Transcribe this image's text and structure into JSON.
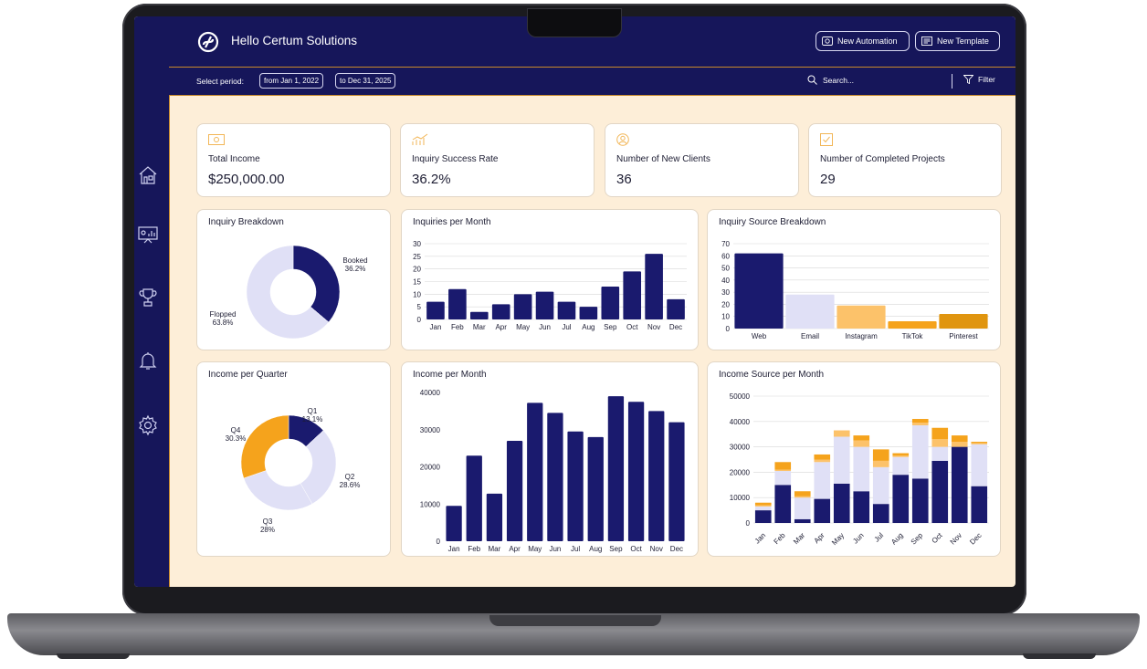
{
  "header": {
    "brand": "Hello Certum Solutions",
    "new_automation": "New Automation",
    "new_template": "New Template",
    "select_period": "Select period:",
    "from_date": "from Jan 1, 2022",
    "to_date": "to Dec 31, 2025",
    "search_placeholder": "Search...",
    "filter": "Filter"
  },
  "sidebar": {
    "items": [
      "home-icon",
      "presentation-icon",
      "trophy-icon",
      "bell-icon",
      "gear-icon"
    ]
  },
  "kpis": [
    {
      "icon": "cash-icon",
      "label": "Total Income",
      "value": "$250,000.00"
    },
    {
      "icon": "growth-icon",
      "label": "Inquiry Success Rate",
      "value": "36.2%"
    },
    {
      "icon": "user-icon",
      "label": "Number of New Clients",
      "value": "36"
    },
    {
      "icon": "check-icon",
      "label": "Number of Completed Projects",
      "value": "29"
    }
  ],
  "colors": {
    "navy": "#1a1a6e",
    "lavender": "#e0e0f6",
    "light_orange": "#fcc26a",
    "orange": "#f5a31c",
    "dark_orange": "#e0950f",
    "accent_border": "#c8892a"
  },
  "chart_data": [
    {
      "type": "pie",
      "title": "Inquiry Breakdown",
      "labels": [
        "Booked",
        "Flopped"
      ],
      "values": [
        36.2,
        63.8
      ],
      "value_labels": [
        "36.2%",
        "63.8%"
      ],
      "colors": [
        "#1a1a6e",
        "#e0e0f6"
      ]
    },
    {
      "type": "bar",
      "title": "Inquiries per Month",
      "categories": [
        "Jan",
        "Feb",
        "Mar",
        "Apr",
        "May",
        "Jun",
        "Jul",
        "Aug",
        "Sep",
        "Oct",
        "Nov",
        "Dec"
      ],
      "values": [
        7,
        12,
        3,
        6,
        10,
        11,
        7,
        5,
        13,
        19,
        26,
        8
      ],
      "ylim": [
        0,
        30
      ],
      "yticks": [
        0,
        5,
        10,
        15,
        20,
        25,
        30
      ],
      "grid": true
    },
    {
      "type": "bar",
      "title": "Inquiry Source Breakdown",
      "categories": [
        "Web",
        "Email",
        "Instagram",
        "TikTok",
        "Pinterest"
      ],
      "values": [
        62,
        28,
        19,
        6,
        12
      ],
      "colors": [
        "#1a1a6e",
        "#e0e0f6",
        "#fcc26a",
        "#f5a31c",
        "#e0950f"
      ],
      "ylim": [
        0,
        70
      ],
      "yticks": [
        0,
        10,
        20,
        30,
        40,
        50,
        60,
        70
      ],
      "grid": true
    },
    {
      "type": "pie",
      "title": "Income per Quarter",
      "labels": [
        "Q1",
        "Q2",
        "Q3",
        "Q4"
      ],
      "values": [
        13.1,
        28.6,
        28,
        30.3
      ],
      "value_labels": [
        "13.1%",
        "28.6%",
        "28%",
        "30.3%"
      ],
      "colors": [
        "#1a1a6e",
        "#e0e0f6",
        "#e0e0f6",
        "#f5a31c"
      ]
    },
    {
      "type": "bar",
      "title": "Income per Month",
      "categories": [
        "Jan",
        "Feb",
        "Mar",
        "Apr",
        "May",
        "Jun",
        "Jul",
        "Aug",
        "Sep",
        "Oct",
        "Nov",
        "Dec"
      ],
      "values": [
        9500,
        23000,
        12800,
        27000,
        37200,
        34500,
        29500,
        28000,
        39000,
        37500,
        35000,
        32000
      ],
      "ylim": [
        0,
        40000
      ],
      "yticks": [
        0,
        10000,
        20000,
        30000,
        40000
      ],
      "grid": false
    },
    {
      "type": "bar",
      "stacked": true,
      "title": "Income Source per Month",
      "categories": [
        "Jan",
        "Feb",
        "Mar",
        "Apr",
        "May",
        "Jun",
        "Jul",
        "Aug",
        "Sep",
        "Oct",
        "Nov",
        "Dec"
      ],
      "series": [
        {
          "values": [
            5000,
            15000,
            1500,
            9500,
            15500,
            12500,
            7500,
            19000,
            17500,
            24500,
            30000,
            14500
          ],
          "color": "#1a1a6e"
        },
        {
          "values": [
            1500,
            5500,
            8500,
            14500,
            18500,
            17500,
            14500,
            7000,
            21000,
            5500,
            0,
            16500
          ],
          "color": "#e0e0f6"
        },
        {
          "values": [
            500,
            500,
            500,
            1000,
            2500,
            2500,
            2500,
            500,
            1000,
            3000,
            2000,
            500
          ],
          "color": "#fcc26a"
        },
        {
          "values": [
            1000,
            3000,
            2000,
            2000,
            0,
            2000,
            4500,
            1000,
            1500,
            4500,
            2500,
            500
          ],
          "color": "#f5a31c"
        }
      ],
      "ylim": [
        0,
        50000
      ],
      "yticks": [
        0,
        10000,
        20000,
        30000,
        40000,
        50000
      ],
      "grid": true
    }
  ]
}
